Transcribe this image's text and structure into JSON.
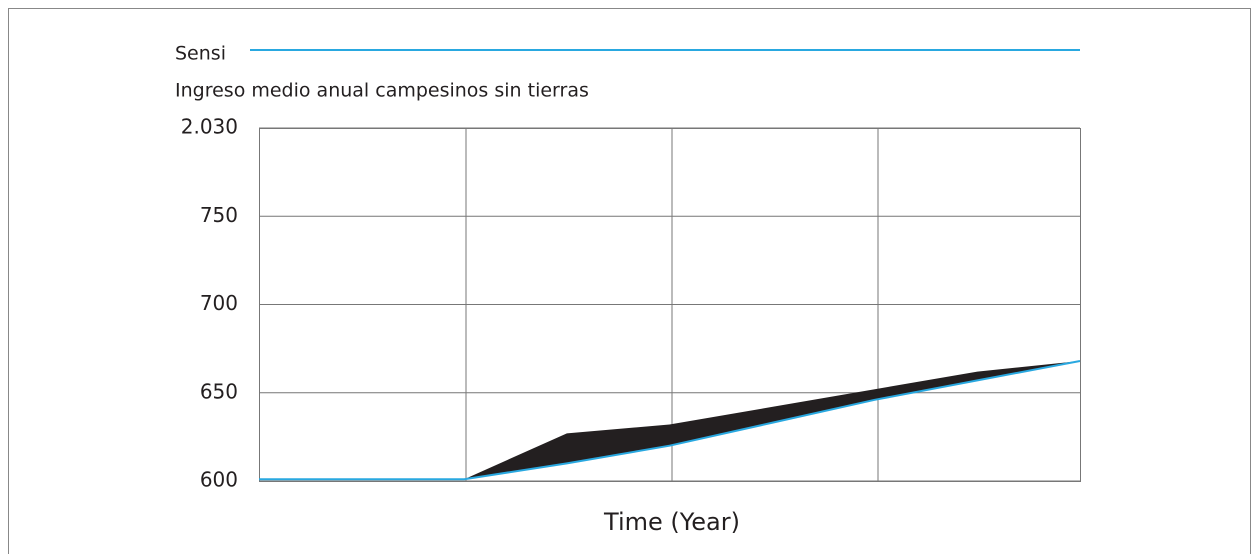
{
  "chart_data": {
    "type": "line",
    "legend_title": "Sensi",
    "subtitle": "Ingreso medio anual campesinos sin tierras",
    "x_label": "Time (Year)",
    "categories": [
      null,
      null,
      null,
      null,
      null,
      null,
      null,
      null,
      null
    ],
    "series": [
      {
        "name": "Sensi",
        "color": "#29a8e0",
        "values": [
          601,
          601,
          601,
          610,
          620,
          633,
          646,
          657,
          668
        ]
      }
    ],
    "band": {
      "color": "#231f20",
      "upper": [
        601,
        601,
        601,
        627,
        632,
        642,
        652,
        662,
        668
      ]
    },
    "ylim": [
      600,
      800
    ],
    "yticks": [
      600,
      650,
      700,
      750,
      {
        "value": 800,
        "label": "2.030"
      }
    ],
    "grid": true
  }
}
